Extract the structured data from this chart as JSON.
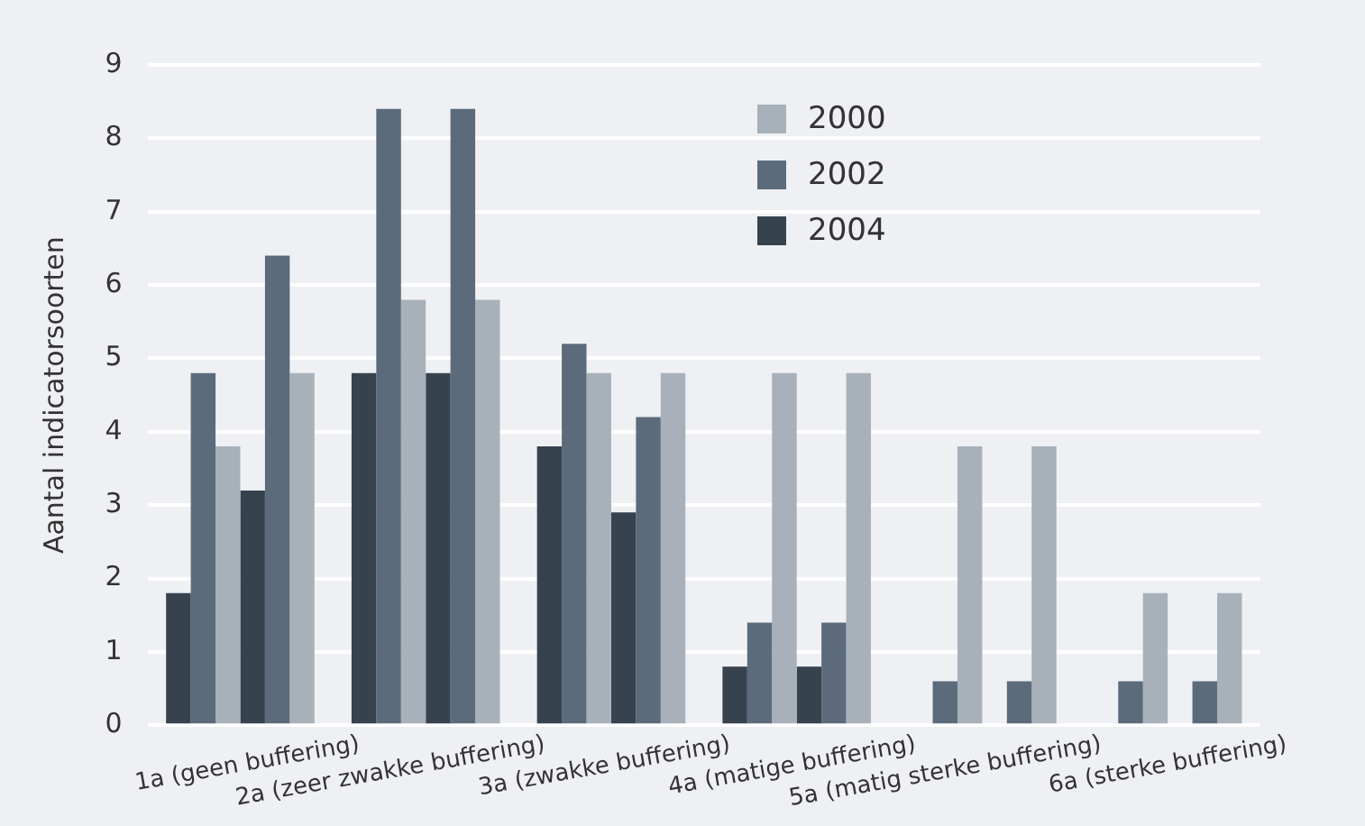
{
  "chart_data": {
    "type": "bar",
    "ylabel": "Aantal indicatorsoorten",
    "categories": [
      "1a (geen buffering)",
      "2a (zeer zwakke buffering)",
      "3a (zwakke buffering)",
      "4a (matige buffering)",
      "5a (matig sterke buffering)",
      "6a (sterke buffering)"
    ],
    "series": [
      {
        "name": "2004",
        "color": "#37424f",
        "values": [
          1.8,
          4.8,
          3.8,
          0.8,
          null,
          null
        ]
      },
      {
        "name": "2002",
        "color": "#5b6b7b",
        "values": [
          4.8,
          8.4,
          5.2,
          1.4,
          0.6,
          0.6
        ]
      },
      {
        "name": "2000",
        "color": "#a8b0ba",
        "values": [
          3.8,
          5.8,
          4.8,
          4.8,
          3.8,
          1.8
        ]
      },
      {
        "color": "#37424f",
        "values": [
          3.2,
          4.8,
          2.9,
          0.8,
          null,
          null
        ]
      },
      {
        "color": "#5b6b7b",
        "values": [
          6.4,
          8.4,
          4.2,
          1.4,
          0.6,
          0.6
        ]
      },
      {
        "color": "#a8b0ba",
        "values": [
          4.8,
          5.8,
          4.8,
          4.8,
          3.8,
          1.8
        ]
      }
    ],
    "ylim": [
      0,
      9
    ],
    "yticks": [
      0,
      1,
      2,
      3,
      4,
      5,
      6,
      7,
      8,
      9
    ],
    "grid": "y",
    "legend": "top right"
  }
}
